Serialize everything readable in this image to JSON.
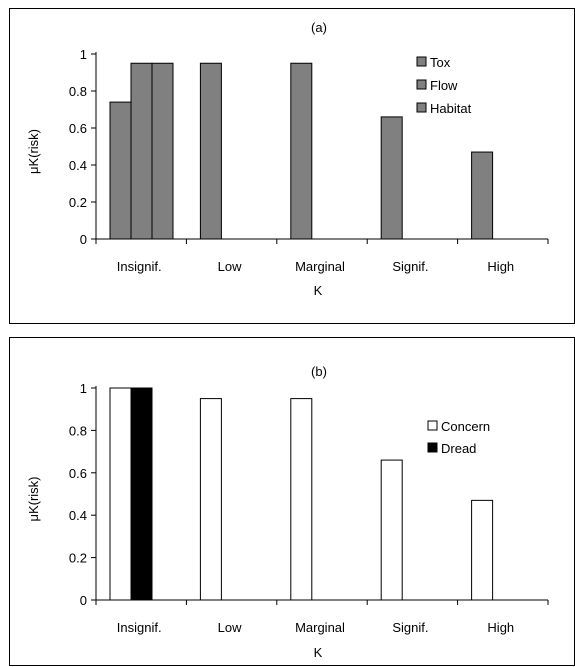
{
  "chart_data": [
    {
      "panel": "(a)",
      "type": "bar",
      "categories": [
        "Insignif.",
        "Low",
        "Marginal",
        "Signif.",
        "High"
      ],
      "xlabel": "K",
      "ylabel": "μK(risk)",
      "ylim": [
        0,
        1
      ],
      "yticks": [
        "0",
        "0.2",
        "0.4",
        "0.6",
        "0.8",
        "1"
      ],
      "grid": false,
      "legend_position": "top-right",
      "series": [
        {
          "name": "Tox",
          "color": "#808080",
          "values": [
            0.74,
            0.95,
            0.95,
            0.66,
            0.47
          ]
        },
        {
          "name": "Flow",
          "color": "#808080",
          "values": [
            0.95,
            null,
            null,
            null,
            null
          ]
        },
        {
          "name": "Habitat",
          "color": "#808080",
          "values": [
            0.95,
            null,
            null,
            null,
            null
          ]
        }
      ]
    },
    {
      "panel": "(b)",
      "type": "bar",
      "categories": [
        "Insignif.",
        "Low",
        "Marginal",
        "Signif.",
        "High"
      ],
      "xlabel": "K",
      "ylabel": "μK(risk)",
      "ylim": [
        0,
        1
      ],
      "yticks": [
        "0",
        "0.2",
        "0.4",
        "0.6",
        "0.8",
        "1"
      ],
      "grid": false,
      "legend_position": "right",
      "series": [
        {
          "name": "Concern",
          "color": "#ffffff",
          "values": [
            1.0,
            0.95,
            0.95,
            0.66,
            0.47
          ]
        },
        {
          "name": "Dread",
          "color": "#000000",
          "values": [
            1.0,
            null,
            null,
            null,
            null
          ]
        }
      ]
    }
  ]
}
